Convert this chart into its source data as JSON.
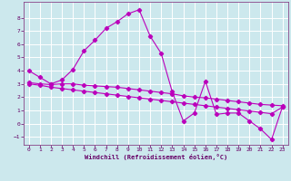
{
  "xlabel": "Windchill (Refroidissement éolien,°C)",
  "background_color": "#cce8ed",
  "grid_color": "#ffffff",
  "line_color": "#bb00bb",
  "xlim": [
    -0.5,
    23.5
  ],
  "ylim": [
    -1.6,
    9.2
  ],
  "xticks": [
    0,
    1,
    2,
    3,
    4,
    5,
    6,
    7,
    8,
    9,
    10,
    11,
    12,
    13,
    14,
    15,
    16,
    17,
    18,
    19,
    20,
    21,
    22,
    23
  ],
  "yticks": [
    -1,
    0,
    1,
    2,
    3,
    4,
    5,
    6,
    7,
    8
  ],
  "series1_x": [
    0,
    1,
    2,
    3,
    4,
    5,
    6,
    7,
    8,
    9,
    10,
    11,
    12,
    13,
    14,
    15,
    16,
    17,
    18,
    19,
    20,
    21,
    22,
    23
  ],
  "series1_y": [
    4.0,
    3.5,
    3.0,
    3.3,
    4.1,
    5.5,
    6.3,
    7.2,
    7.7,
    8.3,
    8.6,
    6.6,
    5.3,
    2.4,
    0.2,
    0.8,
    3.2,
    0.7,
    0.8,
    0.8,
    0.2,
    -0.4,
    -1.2,
    1.3
  ],
  "series2_x": [
    0,
    1,
    2,
    3,
    4,
    5,
    6,
    7,
    8,
    9,
    10,
    11,
    12,
    13,
    14,
    15,
    16,
    17,
    18,
    19,
    20,
    21,
    22,
    23
  ],
  "series2_y": [
    3.1,
    3.0,
    2.95,
    3.0,
    3.0,
    2.9,
    2.85,
    2.8,
    2.75,
    2.65,
    2.55,
    2.45,
    2.35,
    2.25,
    2.1,
    2.0,
    1.95,
    1.85,
    1.75,
    1.65,
    1.55,
    1.45,
    1.4,
    1.35
  ],
  "series3_x": [
    0,
    1,
    2,
    3,
    4,
    5,
    6,
    7,
    8,
    9,
    10,
    11,
    12,
    13,
    14,
    15,
    16,
    17,
    18,
    19,
    20,
    21,
    22,
    23
  ],
  "series3_y": [
    3.0,
    2.9,
    2.75,
    2.65,
    2.55,
    2.45,
    2.35,
    2.25,
    2.15,
    2.05,
    1.95,
    1.85,
    1.75,
    1.65,
    1.55,
    1.45,
    1.35,
    1.25,
    1.15,
    1.05,
    0.95,
    0.85,
    0.75,
    1.25
  ]
}
